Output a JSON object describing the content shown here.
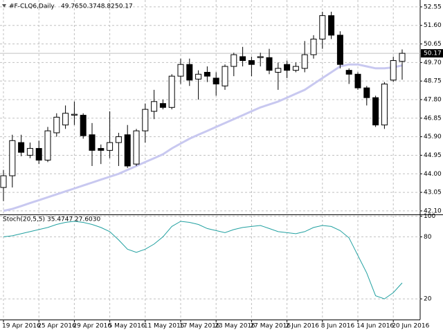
{
  "chart_data": [
    {
      "type": "candlestick",
      "title": "#F-CLQ6,Daily",
      "categories": [
        "19 Apr 2016",
        null,
        null,
        null,
        "25 Apr 2016",
        null,
        null,
        null,
        "29 Apr 2016",
        null,
        null,
        null,
        "5 May 2016",
        null,
        null,
        null,
        "11 May 2016",
        null,
        null,
        null,
        "17 May 2016",
        null,
        null,
        null,
        "23 May 2016",
        null,
        null,
        null,
        "27 May 2016",
        null,
        null,
        null,
        "2 Jun 2016",
        null,
        null,
        null,
        "8 Jun 2016",
        null,
        null,
        null,
        "14 Jun 2016",
        null,
        null,
        null,
        "20 Jun 2016",
        null
      ],
      "open": [
        43.3,
        43.9,
        45.6,
        44.95,
        45.3,
        44.7,
        46.1,
        46.5,
        47.0,
        47.0,
        46.0,
        45.3,
        45.2,
        45.6,
        46.0,
        44.5,
        46.2,
        47.2,
        47.6,
        47.4,
        49.0,
        49.6,
        48.85,
        49.2,
        48.9,
        48.5,
        49.5,
        50.0,
        49.8,
        49.95,
        49.95,
        49.2,
        49.6,
        49.3,
        49.4,
        50.1,
        50.9,
        52.1,
        51.1,
        49.3,
        49.1,
        48.4,
        47.9,
        46.5,
        48.8,
        49.76
      ],
      "high": [
        44.2,
        46.0,
        46.0,
        45.6,
        45.7,
        46.4,
        47.1,
        47.5,
        47.7,
        47.1,
        46.6,
        45.5,
        47.2,
        46.1,
        46.5,
        46.3,
        47.6,
        48.3,
        47.8,
        49.1,
        49.9,
        49.9,
        49.3,
        49.5,
        49.2,
        49.6,
        50.2,
        50.5,
        50.0,
        50.2,
        50.4,
        49.7,
        49.8,
        49.7,
        50.8,
        51.1,
        52.3,
        52.3,
        51.3,
        49.4,
        49.2,
        48.5,
        48.0,
        48.7,
        50.0,
        50.37
      ],
      "low": [
        42.6,
        43.3,
        44.9,
        44.8,
        44.5,
        44.6,
        45.9,
        46.3,
        46.5,
        45.8,
        44.4,
        44.5,
        44.8,
        44.4,
        44.3,
        44.4,
        45.6,
        46.8,
        47.3,
        47.3,
        48.6,
        48.5,
        47.8,
        48.7,
        48.0,
        48.3,
        49.0,
        49.5,
        49.0,
        49.5,
        49.1,
        48.3,
        48.9,
        49.2,
        49.2,
        49.9,
        50.4,
        50.9,
        49.4,
        48.6,
        48.3,
        47.5,
        46.4,
        46.3,
        48.7,
        48.82
      ],
      "close": [
        43.9,
        45.7,
        45.1,
        45.3,
        44.7,
        46.2,
        46.9,
        47.1,
        47.05,
        45.95,
        45.2,
        45.2,
        45.6,
        45.9,
        44.4,
        46.2,
        47.3,
        47.7,
        47.4,
        49.0,
        49.6,
        48.8,
        49.1,
        49.0,
        48.6,
        49.5,
        50.1,
        49.8,
        49.6,
        50.0,
        49.3,
        49.4,
        49.3,
        49.5,
        50.1,
        50.9,
        52.1,
        51.1,
        49.6,
        49.1,
        48.4,
        47.9,
        46.5,
        48.6,
        49.8,
        50.17
      ],
      "overlay": {
        "color": "#c8c8f0",
        "values": [
          42.1,
          42.2,
          42.35,
          42.5,
          42.65,
          42.8,
          42.95,
          43.1,
          43.25,
          43.4,
          43.55,
          43.7,
          43.85,
          44.0,
          44.2,
          44.4,
          44.6,
          44.8,
          45.0,
          45.3,
          45.55,
          45.8,
          46.0,
          46.2,
          46.4,
          46.6,
          46.8,
          47.0,
          47.2,
          47.4,
          47.55,
          47.7,
          47.9,
          48.1,
          48.3,
          48.6,
          48.9,
          49.2,
          49.5,
          49.6,
          49.6,
          49.5,
          49.4,
          49.4,
          49.45,
          49.55
        ]
      },
      "ylim": [
        41.92,
        52.83
      ],
      "yticks": [
        52.55,
        {
          "value": 51.6,
          "label": "51.60"
        },
        50.65,
        {
          "value": 49.7,
          "label": "49.70"
        },
        48.75,
        {
          "value": 47.8,
          "label": "47.80"
        },
        46.85,
        {
          "value": 45.9,
          "label": "45.90"
        },
        44.95,
        {
          "value": 44,
          "label": "44.00"
        },
        43.05,
        {
          "value": 42.1,
          "label": "42.10"
        }
      ],
      "grid": true
    },
    {
      "type": "line",
      "title": "Stoch(20,5,5)",
      "series": [
        {
          "color": "#20a0a0",
          "values": [
            80,
            81,
            83,
            85,
            87,
            89,
            92,
            94,
            95,
            94,
            92,
            89,
            85,
            77,
            68,
            65,
            68,
            73,
            80,
            90,
            95,
            94,
            92,
            88,
            86,
            84,
            87,
            89,
            90,
            91,
            88,
            85,
            84,
            83,
            85,
            89,
            91,
            90,
            86,
            79,
            62,
            45,
            23,
            20,
            26,
            35.4747
          ]
        }
      ],
      "signal_last": {
        "value": 27.603,
        "label": "27.6030"
      },
      "ylim": [
        0,
        101
      ],
      "yticks": [
        100,
        80,
        20
      ],
      "grid": true
    }
  ]
}
